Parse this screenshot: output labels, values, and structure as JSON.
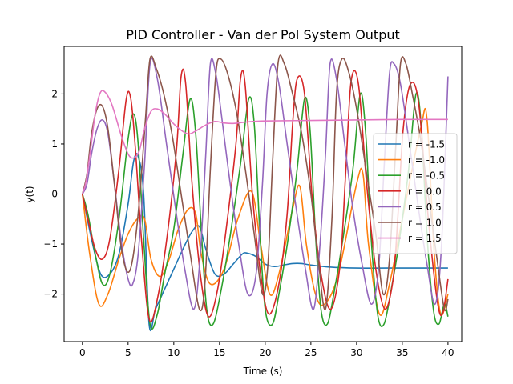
{
  "chart_data": {
    "type": "line",
    "title": "PID Controller - Van der Pol System Output",
    "xlabel": "Time (s)",
    "ylabel": "y(t)",
    "xlim": [
      -2,
      41.5
    ],
    "ylim": [
      -2.95,
      2.95
    ],
    "xticks": [
      0,
      5,
      10,
      15,
      20,
      25,
      30,
      35,
      40
    ],
    "yticks": [
      -2,
      -1,
      0,
      1,
      2
    ],
    "xtick_labels": [
      "0",
      "5",
      "10",
      "15",
      "20",
      "25",
      "30",
      "35",
      "40"
    ],
    "ytick_labels": [
      "−2",
      "−1",
      "0",
      "1",
      "2"
    ],
    "legend": {
      "placement": "right"
    },
    "grid": false,
    "series": [
      {
        "name": "r = -1.5",
        "color": "#1f77b4",
        "x": [
          0,
          1,
          2,
          3,
          4,
          5,
          5.6,
          6.1,
          6.7,
          7.3,
          8,
          9,
          10,
          11,
          12,
          12.8,
          13.5,
          14.5,
          15.5,
          16.5,
          17.5,
          18,
          19,
          20,
          21,
          22,
          23,
          24,
          25,
          27,
          30,
          35,
          40
        ],
        "y": [
          0,
          -0.9,
          -1.6,
          -1.6,
          -1.2,
          -0.2,
          0.65,
          0.75,
          0.0,
          -2.6,
          -2.3,
          -1.9,
          -1.5,
          -1.1,
          -0.75,
          -0.65,
          -1.1,
          -1.6,
          -1.6,
          -1.4,
          -1.2,
          -1.18,
          -1.25,
          -1.4,
          -1.45,
          -1.42,
          -1.39,
          -1.39,
          -1.42,
          -1.46,
          -1.48,
          -1.48,
          -1.48
        ]
      },
      {
        "name": "r = -1.0",
        "color": "#ff7f0e",
        "x": [
          0,
          0.8,
          1.8,
          2.8,
          4,
          5,
          6,
          6.8,
          7.5,
          8.5,
          9.5,
          10.5,
          11.6,
          12.4,
          13,
          14,
          15.5,
          17,
          18.5,
          19.5,
          20.5,
          21.5,
          23,
          23.8,
          24.5,
          25.5,
          26.5,
          28,
          30,
          30.7,
          31.3,
          32.5,
          33.6,
          35,
          37,
          37.7,
          38.5,
          39.2,
          40
        ],
        "y": [
          0,
          -1.2,
          -2.2,
          -2.0,
          -1.3,
          -0.8,
          -0.5,
          -0.5,
          -1.3,
          -1.65,
          -1.3,
          -0.7,
          -0.3,
          -0.4,
          -1.2,
          -1.8,
          -1.5,
          -0.5,
          0.05,
          -1.0,
          -2.0,
          -1.6,
          -0.3,
          0.15,
          -1.0,
          -2.0,
          -2.2,
          -1.6,
          0.2,
          0.4,
          -1.0,
          -2.4,
          -1.8,
          -0.5,
          1.3,
          1.5,
          -1.2,
          -2.4,
          -2.0
        ]
      },
      {
        "name": "r = -0.5",
        "color": "#2ca02c",
        "x": [
          0,
          0.6,
          1.4,
          2.2,
          3,
          4,
          5,
          5.6,
          6.1,
          6.7,
          7.4,
          8.2,
          9,
          10,
          11,
          11.8,
          12.4,
          13,
          13.6,
          14.3,
          15.2,
          16.2,
          17.3,
          18.2,
          18.8,
          19.4,
          20,
          20.8,
          21.6,
          22.5,
          23.5,
          24.3,
          24.9,
          25.5,
          26.1,
          26.8,
          27.6,
          28.5,
          29.6,
          30.4,
          31,
          31.6,
          32.3,
          33,
          33.8,
          34.7,
          35.7,
          36.5,
          37.1,
          37.7,
          38.4,
          39,
          39.6,
          40
        ],
        "y": [
          0,
          -0.4,
          -1.2,
          -1.8,
          -1.6,
          -0.5,
          1.1,
          1.6,
          1.0,
          -0.9,
          -2.6,
          -2.4,
          -1.6,
          -0.7,
          0.8,
          1.9,
          1.2,
          -0.7,
          -2.3,
          -2.6,
          -1.9,
          -0.8,
          0.6,
          1.9,
          1.4,
          -0.7,
          -2.3,
          -2.6,
          -1.9,
          -0.9,
          0.5,
          1.9,
          1.3,
          -0.8,
          -2.3,
          -2.6,
          -1.9,
          -0.9,
          0.5,
          2.0,
          1.2,
          -0.9,
          -2.4,
          -2.6,
          -1.9,
          -0.9,
          0.5,
          2.0,
          1.3,
          -0.8,
          -2.3,
          -2.6,
          -2.2,
          -2.45
        ]
      },
      {
        "name": "r = 0.0",
        "color": "#d62728",
        "x": [
          0,
          0.6,
          1.4,
          2.2,
          3,
          4,
          4.8,
          5.3,
          5.8,
          6.5,
          7.3,
          8.2,
          9.3,
          10.3,
          10.8,
          11.3,
          12,
          12.9,
          13.8,
          14.8,
          15.8,
          16.8,
          17.3,
          17.8,
          18.6,
          19.5,
          20.4,
          21.5,
          22.4,
          23,
          23.5,
          24.3,
          25.2,
          26.2,
          27.2,
          28.2,
          28.8,
          29.4,
          30.2,
          31.1,
          32.1,
          33.1,
          34,
          34.5,
          35.1,
          35.9,
          36.8,
          37.8,
          38.8,
          39.4,
          40
        ],
        "y": [
          0,
          -0.5,
          -1.1,
          -1.3,
          -0.9,
          0.5,
          1.9,
          1.9,
          0.9,
          -1.0,
          -2.5,
          -2.1,
          -0.8,
          0.9,
          2.35,
          2.2,
          0.2,
          -1.6,
          -2.45,
          -1.9,
          -0.6,
          1.0,
          2.3,
          2.2,
          0.0,
          -1.6,
          -2.4,
          -1.8,
          -0.4,
          1.4,
          2.3,
          2.0,
          -0.2,
          -1.7,
          -2.3,
          -1.4,
          0.4,
          2.25,
          2.2,
          0.2,
          -1.5,
          -2.3,
          -1.7,
          -0.5,
          1.3,
          2.2,
          1.8,
          -0.4,
          -2.1,
          -2.4,
          -1.7
        ]
      },
      {
        "name": "r = 0.5",
        "color": "#9467bd",
        "x": [
          0,
          0.5,
          1,
          1.6,
          2.2,
          2.8,
          3.5,
          4.3,
          5,
          5.5,
          6.1,
          6.8,
          7.4,
          8.2,
          9.2,
          10.2,
          11.2,
          12.2,
          12.9,
          13.5,
          14,
          14.6,
          15.2,
          16.1,
          17.1,
          18.1,
          19,
          19.7,
          20.2,
          20.8,
          21.5,
          22.4,
          23.4,
          24.4,
          25.3,
          26,
          26.6,
          27.1,
          27.8,
          28.7,
          29.6,
          30.6,
          31.6,
          32.4,
          33,
          33.6,
          34.1,
          34.8,
          35.7,
          36.7,
          37.7,
          38.6,
          39.3,
          40
        ],
        "y": [
          0,
          0.2,
          0.8,
          1.3,
          1.48,
          1.2,
          0.2,
          -1.0,
          -1.7,
          -1.8,
          -1.2,
          0.6,
          2.6,
          2.3,
          1.0,
          -0.3,
          -1.5,
          -2.3,
          -1.2,
          0.8,
          2.6,
          2.4,
          1.6,
          0.3,
          -1.0,
          -2.0,
          -1.6,
          0.2,
          2.0,
          2.6,
          2.2,
          1.0,
          -0.3,
          -1.5,
          -2.3,
          -1.0,
          0.8,
          2.6,
          2.3,
          1.0,
          -0.3,
          -1.4,
          -2.2,
          -1.5,
          0.5,
          2.4,
          2.6,
          2.2,
          1.1,
          -0.2,
          -1.4,
          -2.2,
          -1.0,
          2.35
        ]
      },
      {
        "name": "r = 1.0",
        "color": "#8c564b",
        "x": [
          0,
          0.5,
          1,
          1.6,
          2.2,
          2.8,
          3.5,
          4.2,
          4.9,
          5.5,
          6.2,
          6.9,
          7.4,
          8.1,
          8.9,
          9.8,
          10.8,
          11.8,
          12.8,
          13.4,
          14,
          14.6,
          15.1,
          15.9,
          16.9,
          17.9,
          18.8,
          19.7,
          20.3,
          20.8,
          21.4,
          22.1,
          23,
          24,
          25,
          25.8,
          26.6,
          27.3,
          27.8,
          28.4,
          29.2,
          30.1,
          31.1,
          32.1,
          32.9,
          33.6,
          34.3,
          34.8,
          35.4,
          36.1,
          37,
          37.9,
          38.8,
          39.6,
          40
        ],
        "y": [
          0,
          0.4,
          1.2,
          1.7,
          1.75,
          1.3,
          0.2,
          -1.0,
          -1.55,
          -1.3,
          -0.2,
          1.5,
          2.7,
          2.5,
          2.0,
          1.2,
          0.0,
          -1.2,
          -2.3,
          -1.8,
          0.5,
          2.4,
          2.7,
          2.4,
          1.6,
          0.4,
          -0.8,
          -2.0,
          -1.4,
          0.6,
          2.6,
          2.6,
          2.0,
          1.2,
          0.0,
          -1.3,
          -2.3,
          -0.5,
          2.0,
          2.7,
          2.4,
          1.6,
          0.4,
          -0.8,
          -2.0,
          -1.3,
          1.0,
          2.6,
          2.6,
          2.0,
          1.1,
          -0.1,
          -1.3,
          -2.3,
          -2.1
        ]
      },
      {
        "name": "r = 1.5",
        "color": "#e377c2",
        "x": [
          0,
          0.4,
          0.9,
          1.4,
          1.9,
          2.4,
          3.2,
          4.2,
          5,
          5.6,
          6.2,
          6.8,
          7.5,
          8.2,
          9,
          10,
          11,
          11.7,
          12.5,
          13.5,
          14.5,
          15.5,
          16.5,
          18,
          20,
          25,
          30,
          35,
          40
        ],
        "y": [
          0,
          0.25,
          0.9,
          1.6,
          2.0,
          2.05,
          1.8,
          1.2,
          0.8,
          0.72,
          0.85,
          1.3,
          1.65,
          1.7,
          1.6,
          1.4,
          1.25,
          1.2,
          1.27,
          1.38,
          1.45,
          1.42,
          1.41,
          1.44,
          1.46,
          1.47,
          1.48,
          1.49,
          1.49
        ]
      }
    ]
  }
}
